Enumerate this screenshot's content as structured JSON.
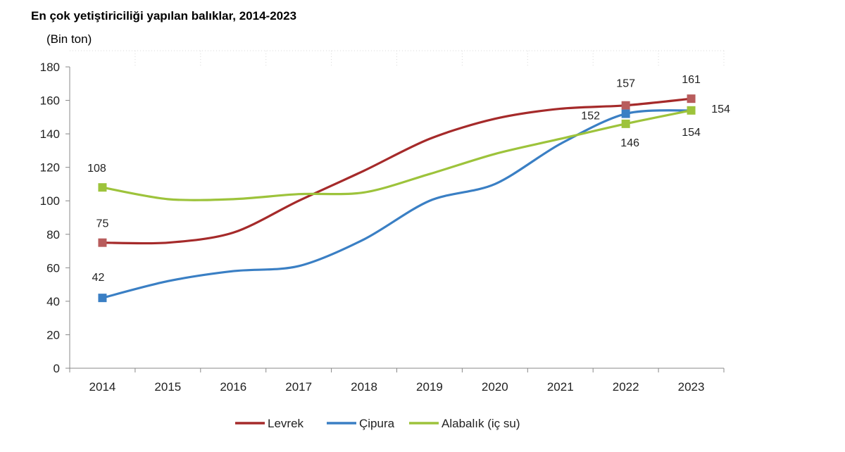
{
  "chart_data": {
    "type": "line",
    "title": "En çok yetiştiriciliği yapılan balıklar, 2014-2023",
    "subtitle": "(Bin ton)",
    "xlabel": "",
    "ylabel": "",
    "categories": [
      "2014",
      "2015",
      "2016",
      "2017",
      "2018",
      "2019",
      "2020",
      "2021",
      "2022",
      "2023"
    ],
    "ylim": [
      0,
      180
    ],
    "yticks": [
      0,
      20,
      40,
      60,
      80,
      100,
      120,
      140,
      160,
      180
    ],
    "grid": false,
    "legend_position": "bottom",
    "series": [
      {
        "name": "Levrek",
        "color": "#a52a2a",
        "values": [
          75,
          75,
          81,
          100,
          118,
          137,
          149,
          155,
          157,
          161
        ]
      },
      {
        "name": "Çipura",
        "color": "#3a7fc4",
        "values": [
          42,
          52,
          58,
          61,
          77,
          100,
          110,
          134,
          152,
          154
        ]
      },
      {
        "name": "Alabalık (iç su)",
        "color": "#9dc33b",
        "values": [
          108,
          101,
          101,
          104,
          105,
          116,
          128,
          137,
          146,
          154
        ]
      }
    ],
    "data_labels": [
      {
        "series": 0,
        "index": 0,
        "text": "75"
      },
      {
        "series": 0,
        "index": 8,
        "text": "157"
      },
      {
        "series": 0,
        "index": 9,
        "text": "161"
      },
      {
        "series": 1,
        "index": 0,
        "text": "42"
      },
      {
        "series": 1,
        "index": 8,
        "text": "152"
      },
      {
        "series": 1,
        "index": 9,
        "text": "154"
      },
      {
        "series": 2,
        "index": 0,
        "text": "108"
      },
      {
        "series": 2,
        "index": 8,
        "text": "146"
      },
      {
        "series": 2,
        "index": 9,
        "text": "154"
      }
    ],
    "markers": [
      {
        "series": 0,
        "indices": [
          0,
          8,
          9
        ],
        "color": "#b85c5c"
      },
      {
        "series": 1,
        "indices": [
          0,
          8
        ],
        "color": "#3a7fc4"
      },
      {
        "series": 2,
        "indices": [
          0,
          8,
          9
        ],
        "color": "#9dc33b"
      }
    ]
  }
}
